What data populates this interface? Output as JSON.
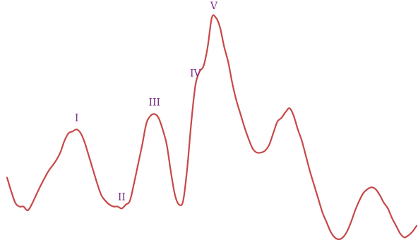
{
  "chart_data": {
    "type": "line",
    "title": "",
    "xlabel": "",
    "ylabel": "",
    "grid": false,
    "legend": "none",
    "series": [
      {
        "color": "#c84848",
        "points": [
          [
            0.0,
            0.17
          ],
          [
            1.0,
            0.1
          ],
          [
            2.0,
            0.04
          ],
          [
            3.0,
            0.02
          ],
          [
            4.0,
            0.02
          ],
          [
            5.0,
            0.0
          ],
          [
            6.0,
            0.03
          ],
          [
            8.0,
            0.12
          ],
          [
            10.0,
            0.2
          ],
          [
            11.0,
            0.23
          ],
          [
            12.0,
            0.26
          ],
          [
            13.0,
            0.3
          ],
          [
            14.0,
            0.36
          ],
          [
            15.0,
            0.4
          ],
          [
            16.0,
            0.41
          ],
          [
            17.0,
            0.42
          ],
          [
            18.0,
            0.4
          ],
          [
            19.0,
            0.35
          ],
          [
            20.0,
            0.28
          ],
          [
            21.0,
            0.21
          ],
          [
            22.0,
            0.14
          ],
          [
            23.0,
            0.08
          ],
          [
            24.0,
            0.05
          ],
          [
            25.0,
            0.03
          ],
          [
            26.0,
            0.02
          ],
          [
            27.0,
            0.02
          ],
          [
            28.0,
            0.01
          ],
          [
            29.0,
            0.03
          ],
          [
            30.0,
            0.05
          ],
          [
            31.0,
            0.14
          ],
          [
            32.0,
            0.24
          ],
          [
            33.0,
            0.34
          ],
          [
            34.0,
            0.45
          ],
          [
            35.0,
            0.49
          ],
          [
            36.0,
            0.5
          ],
          [
            37.0,
            0.48
          ],
          [
            38.0,
            0.42
          ],
          [
            39.0,
            0.34
          ],
          [
            40.0,
            0.2
          ],
          [
            41.0,
            0.08
          ],
          [
            42.0,
            0.03
          ],
          [
            43.0,
            0.05
          ],
          [
            44.0,
            0.22
          ],
          [
            45.0,
            0.46
          ],
          [
            46.0,
            0.65
          ],
          [
            47.0,
            0.72
          ],
          [
            48.0,
            0.75
          ],
          [
            49.0,
            0.85
          ],
          [
            50.0,
            1.0
          ],
          [
            51.0,
            1.0
          ],
          [
            52.0,
            0.95
          ],
          [
            53.0,
            0.85
          ],
          [
            54.0,
            0.77
          ],
          [
            55.0,
            0.66
          ],
          [
            56.0,
            0.57
          ],
          [
            57.0,
            0.5
          ],
          [
            58.0,
            0.43
          ],
          [
            59.0,
            0.37
          ],
          [
            60.0,
            0.32
          ],
          [
            61.0,
            0.3
          ],
          [
            62.0,
            0.3
          ],
          [
            63.0,
            0.31
          ],
          [
            64.0,
            0.34
          ],
          [
            65.0,
            0.4
          ],
          [
            66.0,
            0.46
          ],
          [
            67.0,
            0.48
          ],
          [
            68.0,
            0.51
          ],
          [
            69.0,
            0.53
          ],
          [
            70.0,
            0.49
          ],
          [
            71.0,
            0.42
          ],
          [
            72.0,
            0.36
          ],
          [
            73.0,
            0.28
          ],
          [
            74.0,
            0.2
          ],
          [
            75.0,
            0.13
          ],
          [
            76.0,
            0.06
          ],
          [
            77.0,
            -0.01
          ],
          [
            78.0,
            -0.06
          ],
          [
            79.0,
            -0.11
          ],
          [
            80.0,
            -0.14
          ],
          [
            81.0,
            -0.15
          ],
          [
            82.0,
            -0.14
          ],
          [
            83.0,
            -0.11
          ],
          [
            84.0,
            -0.06
          ],
          [
            85.0,
            0.0
          ],
          [
            86.0,
            0.05
          ],
          [
            87.0,
            0.09
          ],
          [
            88.0,
            0.11
          ],
          [
            89.0,
            0.12
          ],
          [
            90.0,
            0.11
          ],
          [
            91.0,
            0.08
          ],
          [
            92.0,
            0.04
          ],
          [
            93.0,
            0.01
          ],
          [
            94.0,
            -0.04
          ],
          [
            95.0,
            -0.08
          ],
          [
            96.0,
            -0.12
          ],
          [
            97.0,
            -0.14
          ],
          [
            98.0,
            -0.13
          ],
          [
            99.0,
            -0.11
          ],
          [
            100.0,
            -0.08
          ]
        ]
      }
    ],
    "annotations": [
      {
        "text": "I",
        "x": 17.0,
        "y": 0.42
      },
      {
        "text": "II",
        "x": 28.0,
        "y": 0.01
      },
      {
        "text": "III",
        "x": 36.0,
        "y": 0.5
      },
      {
        "text": "IV",
        "x": 46.0,
        "y": 0.65
      },
      {
        "text": "V",
        "x": 50.5,
        "y": 1.0
      }
    ]
  }
}
